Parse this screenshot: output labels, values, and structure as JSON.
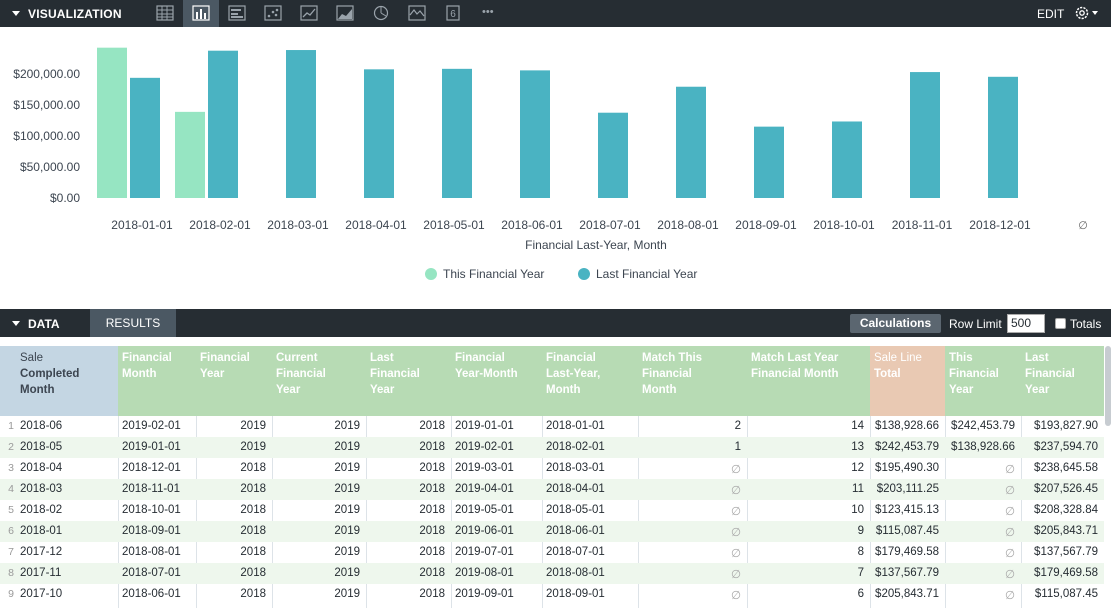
{
  "visualization": {
    "title": "VISUALIZATION",
    "edit_label": "EDIT",
    "more_label": "•••",
    "six_label": "6"
  },
  "chart_data": {
    "type": "bar",
    "categories": [
      "2018-01-01",
      "2018-02-01",
      "2018-03-01",
      "2018-04-01",
      "2018-05-01",
      "2018-06-01",
      "2018-07-01",
      "2018-08-01",
      "2018-09-01",
      "2018-10-01",
      "2018-11-01",
      "2018-12-01",
      "∅"
    ],
    "series": [
      {
        "name": "This Financial Year",
        "color": "#96e5c2",
        "values": [
          242453.79,
          138928.66,
          null,
          null,
          null,
          null,
          null,
          null,
          null,
          null,
          null,
          null,
          null
        ]
      },
      {
        "name": "Last Financial Year",
        "color": "#4ab3c2",
        "values": [
          193827.9,
          237594.7,
          238645.58,
          207526.45,
          208328.84,
          205843.71,
          137567.79,
          179469.58,
          115087.45,
          123415.13,
          203111.25,
          195490.3,
          null
        ]
      }
    ],
    "xlabel": "Financial Last-Year, Month",
    "yticks": [
      "$0.00",
      "$50,000.00",
      "$100,000.00",
      "$150,000.00",
      "$200,000.00"
    ],
    "ylim": [
      0,
      250000
    ],
    "legend": "bottom-center"
  },
  "data_panel": {
    "title": "DATA",
    "results_tab": "RESULTS",
    "calculations_button": "Calculations",
    "row_limit_label": "Row Limit",
    "row_limit_value": "500",
    "totals_label": "Totals"
  },
  "table": {
    "headers": [
      {
        "lines": [
          "Sale",
          "Completed",
          "Month"
        ]
      },
      {
        "lines": [
          "Financial",
          "Month"
        ]
      },
      {
        "lines": [
          "Financial",
          "Year"
        ]
      },
      {
        "lines": [
          "Current",
          "Financial",
          "Year"
        ]
      },
      {
        "lines": [
          "Last",
          "Financial",
          "Year"
        ]
      },
      {
        "lines": [
          "Financial",
          "Year-Month"
        ]
      },
      {
        "lines": [
          "Financial",
          "Last-Year,",
          "Month"
        ]
      },
      {
        "lines": [
          "Match This",
          "Financial",
          "Month"
        ]
      },
      {
        "lines": [
          "Match Last Year",
          "Financial Month"
        ]
      },
      {
        "lines": [
          "Sale Line",
          "Total"
        ]
      },
      {
        "lines": [
          "This",
          "Financial",
          "Year"
        ]
      },
      {
        "lines": [
          "Last",
          "Financial",
          "Year"
        ]
      }
    ],
    "rows": [
      [
        "1",
        "2018-06",
        "2019-02-01",
        "2019",
        "2019",
        "2018",
        "2019-01-01",
        "2018-01-01",
        "2",
        "14",
        "$138,928.66",
        "$242,453.79",
        "$193,827.90"
      ],
      [
        "2",
        "2018-05",
        "2019-01-01",
        "2019",
        "2019",
        "2018",
        "2019-02-01",
        "2018-02-01",
        "1",
        "13",
        "$242,453.79",
        "$138,928.66",
        "$237,594.70"
      ],
      [
        "3",
        "2018-04",
        "2018-12-01",
        "2018",
        "2019",
        "2018",
        "2019-03-01",
        "2018-03-01",
        "∅",
        "12",
        "$195,490.30",
        "∅",
        "$238,645.58"
      ],
      [
        "4",
        "2018-03",
        "2018-11-01",
        "2018",
        "2019",
        "2018",
        "2019-04-01",
        "2018-04-01",
        "∅",
        "11",
        "$203,111.25",
        "∅",
        "$207,526.45"
      ],
      [
        "5",
        "2018-02",
        "2018-10-01",
        "2018",
        "2019",
        "2018",
        "2019-05-01",
        "2018-05-01",
        "∅",
        "10",
        "$123,415.13",
        "∅",
        "$208,328.84"
      ],
      [
        "6",
        "2018-01",
        "2018-09-01",
        "2018",
        "2019",
        "2018",
        "2019-06-01",
        "2018-06-01",
        "∅",
        "9",
        "$115,087.45",
        "∅",
        "$205,843.71"
      ],
      [
        "7",
        "2017-12",
        "2018-08-01",
        "2018",
        "2019",
        "2018",
        "2019-07-01",
        "2018-07-01",
        "∅",
        "8",
        "$179,469.58",
        "∅",
        "$137,567.79"
      ],
      [
        "8",
        "2017-11",
        "2018-07-01",
        "2018",
        "2019",
        "2018",
        "2019-08-01",
        "2018-08-01",
        "∅",
        "7",
        "$137,567.79",
        "∅",
        "$179,469.58"
      ],
      [
        "9",
        "2017-10",
        "2018-06-01",
        "2018",
        "2019",
        "2018",
        "2019-09-01",
        "2018-09-01",
        "∅",
        "6",
        "$205,843.71",
        "∅",
        "$115,087.45"
      ]
    ]
  }
}
